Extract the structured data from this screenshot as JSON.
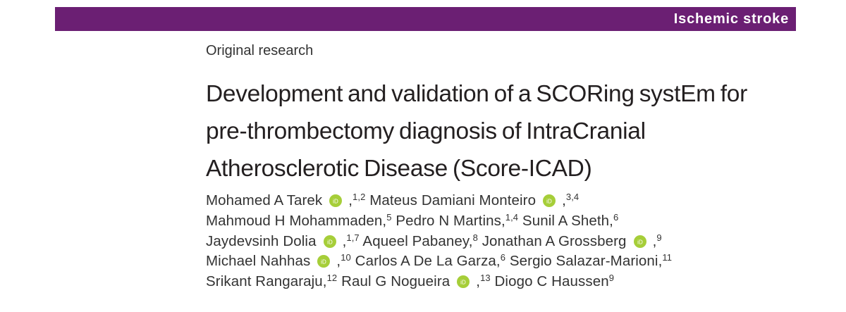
{
  "header": {
    "section": "Ischemic stroke",
    "band_color": "#6b1f73"
  },
  "article": {
    "type": "Original research",
    "title_lines": [
      "Development and validation of a SCORing systEm for",
      "pre-thrombectomy diagnosis of IntraCranial",
      "Atherosclerotic Disease (Score-ICAD)"
    ]
  },
  "orcid_icon": {
    "name": "orcid-icon",
    "color": "#a6ce39",
    "text": "iD"
  },
  "authors": {
    "lines": [
      [
        {
          "name": "Mohamed A Tarek",
          "orcid": true,
          "aff": "1,2",
          "sep": ""
        },
        {
          "name": "Mateus Damiani Monteiro",
          "orcid": true,
          "aff": "3,4",
          "sep": ""
        }
      ],
      [
        {
          "name": "Mahmoud H Mohammaden,",
          "orcid": false,
          "aff": "5",
          "sep": ""
        },
        {
          "name": "Pedro N Martins,",
          "orcid": false,
          "aff": "1,4",
          "sep": ""
        },
        {
          "name": "Sunil A Sheth,",
          "orcid": false,
          "aff": "6",
          "sep": ""
        }
      ],
      [
        {
          "name": "Jaydevsinh Dolia",
          "orcid": true,
          "aff": "1,7",
          "sep": ""
        },
        {
          "name": "Aqueel Pabaney,",
          "orcid": false,
          "aff": "8",
          "sep": ""
        },
        {
          "name": "Jonathan A Grossberg",
          "orcid": true,
          "aff": "9",
          "sep": ""
        }
      ],
      [
        {
          "name": "Michael Nahhas",
          "orcid": true,
          "aff": "10",
          "sep": ""
        },
        {
          "name": "Carlos A De La Garza,",
          "orcid": false,
          "aff": "6",
          "sep": ""
        },
        {
          "name": "Sergio Salazar-Marioni,",
          "orcid": false,
          "aff": "11",
          "sep": ""
        }
      ],
      [
        {
          "name": "Srikant Rangaraju,",
          "orcid": false,
          "aff": "12",
          "sep": ""
        },
        {
          "name": "Raul G Nogueira",
          "orcid": true,
          "aff": "13",
          "sep": ""
        },
        {
          "name": "Diogo C Haussen",
          "orcid": false,
          "aff": "9",
          "sep": ""
        }
      ]
    ]
  }
}
